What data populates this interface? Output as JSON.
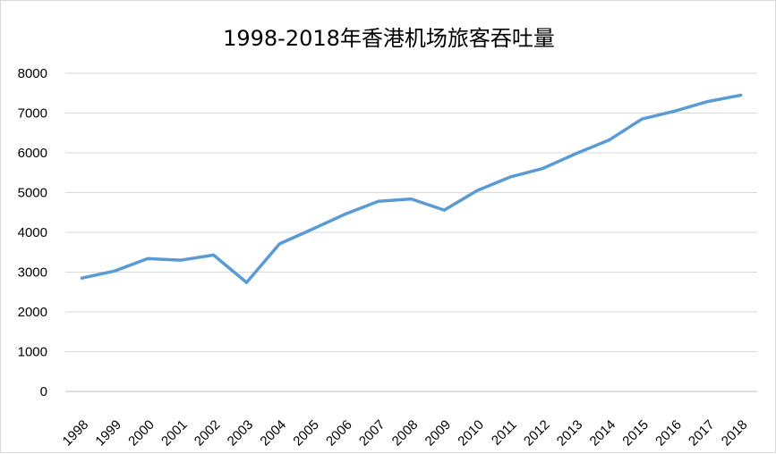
{
  "chart_data": {
    "type": "line",
    "title": "1998-2018年香港机场旅客吞吐量",
    "xlabel": "",
    "ylabel": "",
    "categories": [
      "1998",
      "1999",
      "2000",
      "2001",
      "2002",
      "2003",
      "2004",
      "2005",
      "2006",
      "2007",
      "2008",
      "2009",
      "2010",
      "2011",
      "2012",
      "2013",
      "2014",
      "2015",
      "2016",
      "2017",
      "2018"
    ],
    "series": [
      {
        "values": [
          2850,
          3030,
          3340,
          3300,
          3430,
          2740,
          3710,
          4080,
          4460,
          4780,
          4840,
          4560,
          5050,
          5390,
          5610,
          5980,
          6320,
          6850,
          7050,
          7290,
          7450
        ],
        "color": "#5b9bd5"
      }
    ],
    "yticks": [
      0,
      1000,
      2000,
      3000,
      4000,
      5000,
      6000,
      7000,
      8000
    ],
    "ylim": [
      0,
      8000
    ],
    "grid": true,
    "legend": "none"
  }
}
